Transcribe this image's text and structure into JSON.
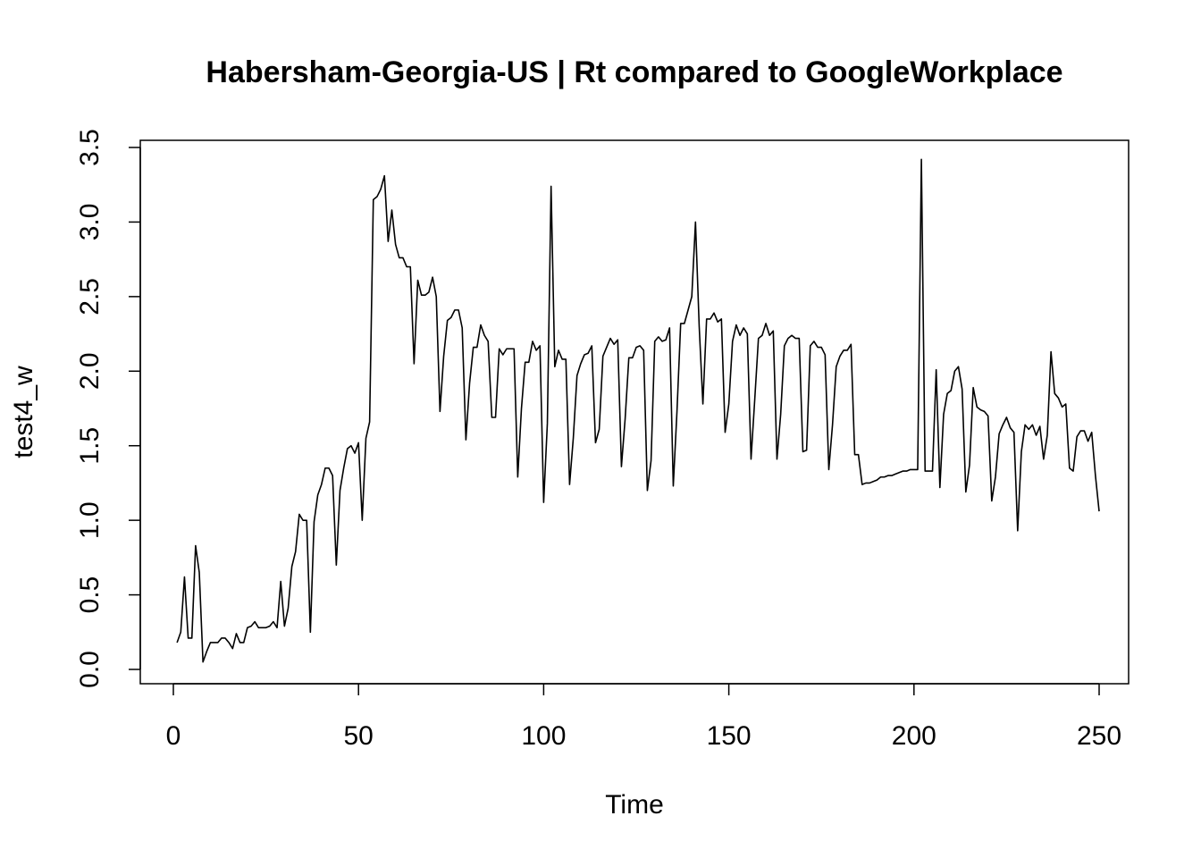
{
  "chart_data": {
    "type": "line",
    "title": "Habersham-Georgia-US | Rt compared to GoogleWorkplace",
    "xlabel": "Time",
    "ylabel": "test4_w",
    "xlim": [
      0,
      250
    ],
    "ylim": [
      0,
      3.5
    ],
    "x_ticks": [
      0,
      50,
      100,
      150,
      200,
      250
    ],
    "x_tick_labels": [
      "0",
      "50",
      "100",
      "150",
      "200",
      "250"
    ],
    "y_ticks": [
      0.0,
      0.5,
      1.0,
      1.5,
      2.0,
      2.5,
      3.0,
      3.5
    ],
    "y_tick_labels": [
      "0.0",
      "0.5",
      "1.0",
      "1.5",
      "2.0",
      "2.5",
      "3.0",
      "3.5"
    ],
    "grid": false,
    "line_color": "#000000",
    "series": [
      {
        "x_start": 1,
        "values": [
          0.18,
          0.25,
          0.62,
          0.21,
          0.21,
          0.83,
          0.65,
          0.05,
          0.12,
          0.18,
          0.18,
          0.18,
          0.21,
          0.21,
          0.18,
          0.14,
          0.24,
          0.18,
          0.18,
          0.28,
          0.29,
          0.32,
          0.28,
          0.28,
          0.28,
          0.29,
          0.32,
          0.28,
          0.59,
          0.29,
          0.41,
          0.69,
          0.79,
          1.04,
          1.0,
          1.0,
          0.25,
          0.99,
          1.17,
          1.24,
          1.35,
          1.35,
          1.3,
          0.7,
          1.2,
          1.35,
          1.48,
          1.5,
          1.45,
          1.52,
          1.0,
          1.55,
          1.66,
          3.15,
          3.17,
          3.22,
          3.31,
          2.87,
          3.08,
          2.85,
          2.76,
          2.76,
          2.7,
          2.7,
          2.05,
          2.61,
          2.51,
          2.51,
          2.53,
          2.63,
          2.5,
          1.73,
          2.1,
          2.34,
          2.36,
          2.41,
          2.41,
          2.29,
          1.54,
          1.92,
          2.16,
          2.16,
          2.31,
          2.24,
          2.2,
          1.69,
          1.69,
          2.15,
          2.11,
          2.15,
          2.15,
          2.15,
          1.29,
          1.75,
          2.06,
          2.06,
          2.2,
          2.14,
          2.17,
          1.12,
          1.65,
          3.24,
          2.03,
          2.14,
          2.08,
          2.08,
          1.24,
          1.55,
          1.97,
          2.05,
          2.11,
          2.12,
          2.17,
          1.52,
          1.61,
          2.1,
          2.16,
          2.22,
          2.18,
          2.21,
          1.36,
          1.68,
          2.09,
          2.09,
          2.16,
          2.17,
          2.14,
          1.2,
          1.4,
          2.2,
          2.23,
          2.2,
          2.21,
          2.29,
          1.23,
          1.73,
          2.32,
          2.32,
          2.41,
          2.5,
          3.0,
          2.3,
          1.78,
          2.35,
          2.35,
          2.39,
          2.33,
          2.35,
          1.59,
          1.78,
          2.2,
          2.31,
          2.24,
          2.29,
          2.25,
          1.41,
          1.81,
          2.22,
          2.24,
          2.32,
          2.24,
          2.27,
          1.41,
          1.71,
          2.17,
          2.22,
          2.24,
          2.22,
          2.22,
          1.46,
          1.47,
          2.17,
          2.2,
          2.16,
          2.16,
          2.11,
          1.34,
          1.64,
          2.03,
          2.1,
          2.14,
          2.14,
          2.18,
          1.44,
          1.44,
          1.24,
          1.25,
          1.25,
          1.26,
          1.27,
          1.29,
          1.29,
          1.3,
          1.3,
          1.31,
          1.32,
          1.33,
          1.33,
          1.34,
          1.34,
          1.34,
          3.42,
          1.33,
          1.33,
          1.33,
          2.01,
          1.22,
          1.71,
          1.85,
          1.87,
          2.0,
          2.03,
          1.88,
          1.19,
          1.37,
          1.89,
          1.76,
          1.74,
          1.73,
          1.7,
          1.13,
          1.29,
          1.58,
          1.64,
          1.69,
          1.62,
          1.59,
          0.93,
          1.46,
          1.64,
          1.61,
          1.64,
          1.57,
          1.63,
          1.41,
          1.57,
          2.13,
          1.85,
          1.82,
          1.76,
          1.78,
          1.35,
          1.33,
          1.56,
          1.6,
          1.6,
          1.53,
          1.59,
          1.3,
          1.06
        ]
      }
    ]
  }
}
